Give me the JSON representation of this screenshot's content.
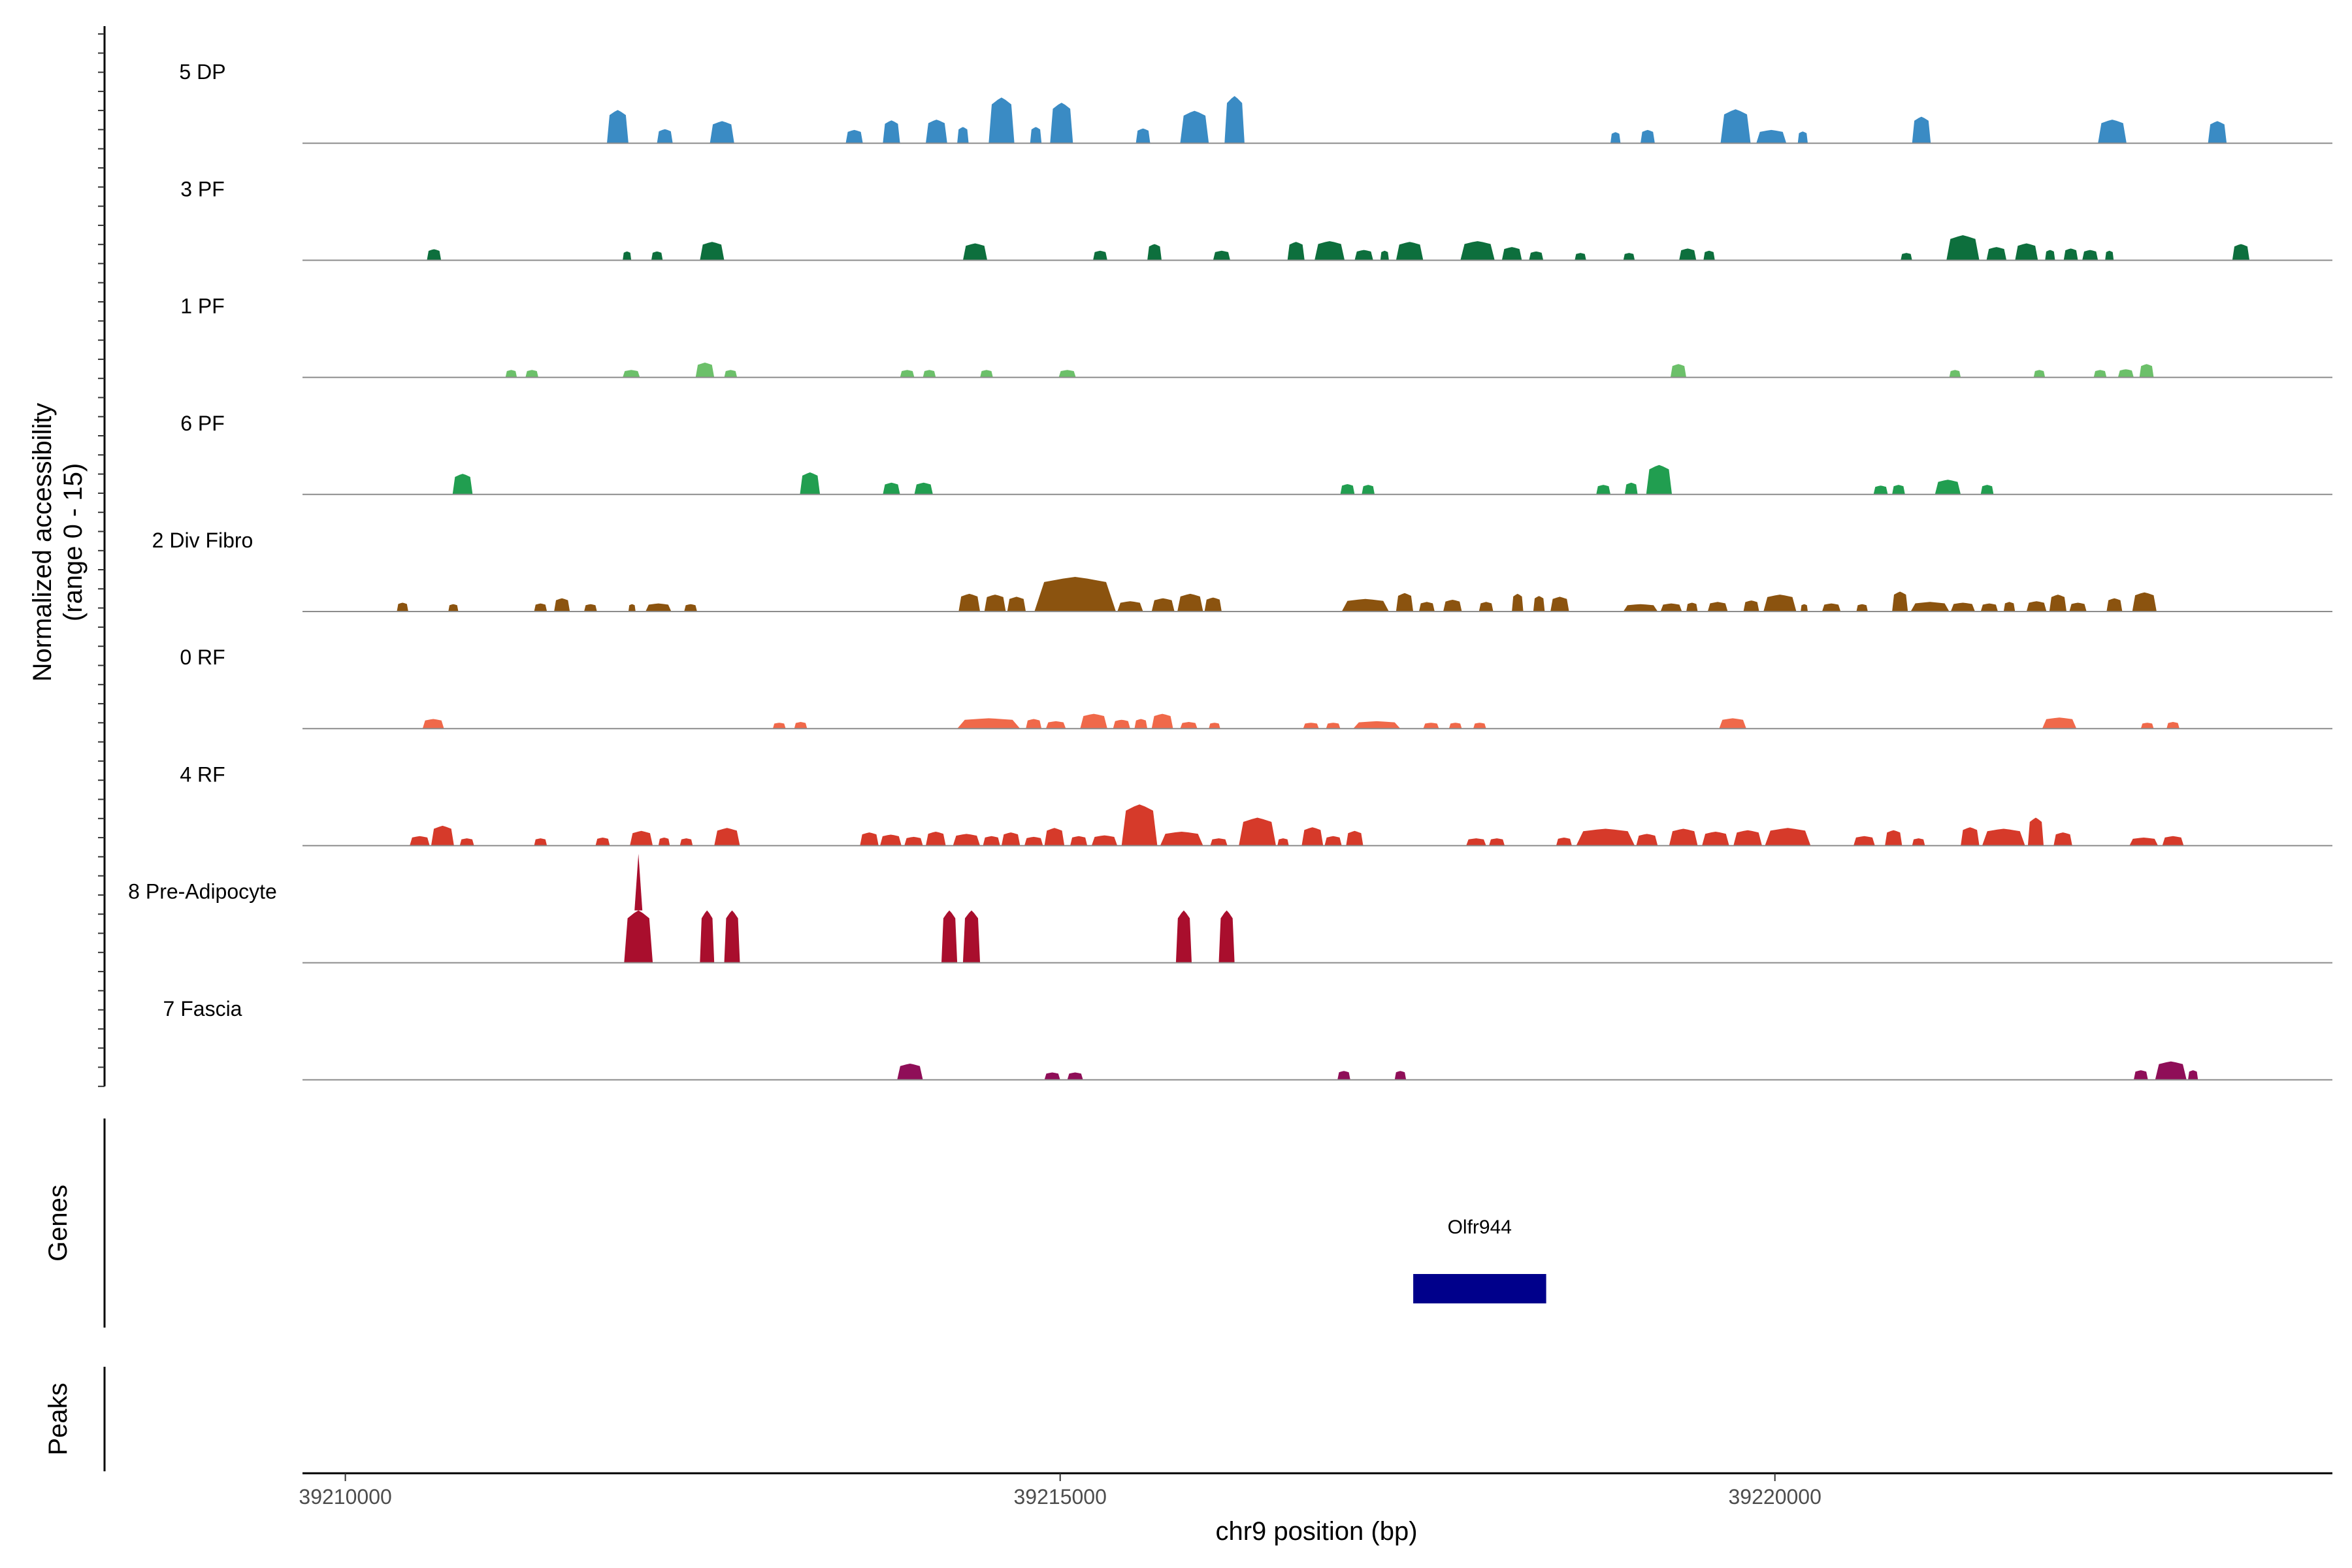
{
  "chart_data": {
    "type": "area",
    "ylabel": "Normalized accessibility",
    "ylabel_range": "(range 0 - 15)",
    "ylim": [
      0,
      15
    ],
    "xlabel": "chr9 position (bp)",
    "xlim": [
      39209700,
      39223900
    ],
    "xticks": [
      39210000,
      39215000,
      39220000
    ],
    "xtick_labels": [
      "39210000",
      "39215000",
      "39220000"
    ],
    "grid": false,
    "series": [
      {
        "name": "5 DP",
        "color": "#3A8BC4",
        "peaks": [
          [
            39211830,
            39211980,
            4.5
          ],
          [
            39212180,
            39212290,
            1.9
          ],
          [
            39212550,
            39212720,
            3.0
          ],
          [
            39213500,
            39213620,
            1.8
          ],
          [
            39213760,
            39213880,
            3.1
          ],
          [
            39214060,
            39214210,
            3.2
          ],
          [
            39214280,
            39214360,
            2.2
          ],
          [
            39214500,
            39214680,
            6.2
          ],
          [
            39214790,
            39214870,
            2.2
          ],
          [
            39214930,
            39215090,
            5.5
          ],
          [
            39215530,
            39215630,
            2.0
          ],
          [
            39215840,
            39216040,
            4.4
          ],
          [
            39216150,
            39216290,
            6.4
          ],
          [
            39218850,
            39218920,
            1.5
          ],
          [
            39219060,
            39219160,
            1.8
          ],
          [
            39219620,
            39219830,
            4.6
          ],
          [
            39219870,
            39220080,
            1.8
          ],
          [
            39220160,
            39220230,
            1.6
          ],
          [
            39220960,
            39221090,
            3.6
          ],
          [
            39222260,
            39222460,
            3.2
          ],
          [
            39223030,
            39223160,
            3.0
          ]
        ]
      },
      {
        "name": "3 PF",
        "color": "#0D6F3D",
        "peaks": [
          [
            39210570,
            39210670,
            1.5
          ],
          [
            39211940,
            39212000,
            1.2
          ],
          [
            39212140,
            39212220,
            1.2
          ],
          [
            39212480,
            39212650,
            2.5
          ],
          [
            39214320,
            39214490,
            2.3
          ],
          [
            39215230,
            39215330,
            1.3
          ],
          [
            39215610,
            39215710,
            2.2
          ],
          [
            39216070,
            39216190,
            1.3
          ],
          [
            39216590,
            39216710,
            2.5
          ],
          [
            39216780,
            39216990,
            2.6
          ],
          [
            39217060,
            39217190,
            1.4
          ],
          [
            39217240,
            39217300,
            1.3
          ],
          [
            39217350,
            39217540,
            2.5
          ],
          [
            39217800,
            39218040,
            2.6
          ],
          [
            39218090,
            39218230,
            1.8
          ],
          [
            39218280,
            39218380,
            1.2
          ],
          [
            39218600,
            39218680,
            1.0
          ],
          [
            39218940,
            39219020,
            1.0
          ],
          [
            39219330,
            39219450,
            1.6
          ],
          [
            39219500,
            39219580,
            1.3
          ],
          [
            39220880,
            39220960,
            1.0
          ],
          [
            39221200,
            39221430,
            3.4
          ],
          [
            39221480,
            39221620,
            1.8
          ],
          [
            39221680,
            39221840,
            2.3
          ],
          [
            39221890,
            39221960,
            1.4
          ],
          [
            39222020,
            39222120,
            1.6
          ],
          [
            39222150,
            39222260,
            1.4
          ],
          [
            39222310,
            39222370,
            1.3
          ],
          [
            39223200,
            39223320,
            2.2
          ]
        ]
      },
      {
        "name": "1 PF",
        "color": "#6CC06A",
        "peaks": [
          [
            39211120,
            39211200,
            1.0
          ],
          [
            39211260,
            39211350,
            1.0
          ],
          [
            39211940,
            39212060,
            1.0
          ],
          [
            39212450,
            39212580,
            2.0
          ],
          [
            39212650,
            39212740,
            1.0
          ],
          [
            39213880,
            39213980,
            1.0
          ],
          [
            39214040,
            39214130,
            1.0
          ],
          [
            39214440,
            39214530,
            1.0
          ],
          [
            39214990,
            39215110,
            1.0
          ],
          [
            39219270,
            39219380,
            1.8
          ],
          [
            39221220,
            39221300,
            1.0
          ],
          [
            39221810,
            39221890,
            1.0
          ],
          [
            39222230,
            39222320,
            1.0
          ],
          [
            39222400,
            39222510,
            1.1
          ],
          [
            39222550,
            39222650,
            1.8
          ]
        ]
      },
      {
        "name": "6 PF",
        "color": "#219E50",
        "peaks": [
          [
            39210750,
            39210890,
            2.8
          ],
          [
            39213180,
            39213320,
            3.0
          ],
          [
            39213760,
            39213880,
            1.6
          ],
          [
            39213980,
            39214110,
            1.6
          ],
          [
            39216960,
            39217060,
            1.4
          ],
          [
            39217110,
            39217200,
            1.3
          ],
          [
            39218750,
            39218850,
            1.3
          ],
          [
            39218950,
            39219040,
            1.6
          ],
          [
            39219100,
            39219280,
            4.0
          ],
          [
            39220690,
            39220790,
            1.2
          ],
          [
            39220820,
            39220910,
            1.3
          ],
          [
            39221120,
            39221300,
            2.0
          ],
          [
            39221440,
            39221530,
            1.3
          ]
        ]
      },
      {
        "name": "2 Div Fibro",
        "color": "#8B530F",
        "peaks": [
          [
            39210360,
            39210440,
            1.2
          ],
          [
            39210720,
            39210790,
            1.0
          ],
          [
            39211320,
            39211410,
            1.1
          ],
          [
            39211460,
            39211570,
            1.8
          ],
          [
            39211670,
            39211760,
            1.0
          ],
          [
            39211980,
            39212030,
            1.0
          ],
          [
            39212100,
            39212280,
            1.1
          ],
          [
            39212370,
            39212460,
            1.0
          ],
          [
            39214290,
            39214440,
            2.4
          ],
          [
            39214470,
            39214620,
            2.3
          ],
          [
            39214630,
            39214760,
            2.0
          ],
          [
            39214820,
            39215390,
            4.7
          ],
          [
            39215400,
            39215580,
            1.4
          ],
          [
            39215640,
            39215800,
            1.8
          ],
          [
            39215820,
            39216000,
            2.4
          ],
          [
            39216010,
            39216130,
            1.9
          ],
          [
            39216970,
            39217300,
            1.7
          ],
          [
            39217350,
            39217470,
            2.5
          ],
          [
            39217510,
            39217620,
            1.3
          ],
          [
            39217680,
            39217810,
            1.6
          ],
          [
            39217930,
            39218030,
            1.3
          ],
          [
            39218160,
            39218240,
            2.4
          ],
          [
            39218310,
            39218390,
            2.1
          ],
          [
            39218430,
            39218560,
            2.0
          ],
          [
            39218940,
            39219180,
            1.0
          ],
          [
            39219200,
            39219350,
            1.1
          ],
          [
            39219380,
            39219460,
            1.2
          ],
          [
            39219530,
            39219670,
            1.3
          ],
          [
            39219780,
            39219890,
            1.5
          ],
          [
            39219920,
            39220150,
            2.3
          ],
          [
            39220180,
            39220230,
            1.0
          ],
          [
            39220330,
            39220460,
            1.1
          ],
          [
            39220570,
            39220650,
            1.0
          ],
          [
            39220820,
            39220930,
            2.7
          ],
          [
            39220950,
            39221220,
            1.3
          ],
          [
            39221230,
            39221400,
            1.2
          ],
          [
            39221440,
            39221560,
            1.1
          ],
          [
            39221600,
            39221680,
            1.3
          ],
          [
            39221760,
            39221900,
            1.4
          ],
          [
            39221920,
            39222040,
            2.3
          ],
          [
            39222060,
            39222180,
            1.2
          ],
          [
            39222320,
            39222430,
            1.8
          ],
          [
            39222500,
            39222670,
            2.6
          ]
        ]
      },
      {
        "name": "0 RF",
        "color": "#F0694A",
        "peaks": [
          [
            39210540,
            39210690,
            1.3
          ],
          [
            39212990,
            39213080,
            0.8
          ],
          [
            39213140,
            39213230,
            0.9
          ],
          [
            39214280,
            39214720,
            1.4
          ],
          [
            39214760,
            39214870,
            1.3
          ],
          [
            39214900,
            39215040,
            1.0
          ],
          [
            39215140,
            39215330,
            2.0
          ],
          [
            39215370,
            39215490,
            1.2
          ],
          [
            39215520,
            39215610,
            1.3
          ],
          [
            39215640,
            39215790,
            2.0
          ],
          [
            39215840,
            39215960,
            0.9
          ],
          [
            39216040,
            39216120,
            0.8
          ],
          [
            39216700,
            39216810,
            0.8
          ],
          [
            39216860,
            39216960,
            0.8
          ],
          [
            39217050,
            39217380,
            1.0
          ],
          [
            39217540,
            39217650,
            0.8
          ],
          [
            39217720,
            39217810,
            0.8
          ],
          [
            39217890,
            39217980,
            0.8
          ],
          [
            39219610,
            39219800,
            1.4
          ],
          [
            39221870,
            39222110,
            1.5
          ],
          [
            39222560,
            39222650,
            0.8
          ],
          [
            39222740,
            39222830,
            0.9
          ]
        ]
      },
      {
        "name": "4 RF",
        "color": "#D63A2A",
        "peaks": [
          [
            39210450,
            39210590,
            1.3
          ],
          [
            39210600,
            39210760,
            2.7
          ],
          [
            39210800,
            39210900,
            1.0
          ],
          [
            39211320,
            39211410,
            1.0
          ],
          [
            39211750,
            39211850,
            1.1
          ],
          [
            39211990,
            39212150,
            2.0
          ],
          [
            39212190,
            39212270,
            1.1
          ],
          [
            39212340,
            39212430,
            1.0
          ],
          [
            39212580,
            39212760,
            2.4
          ],
          [
            39213600,
            39213730,
            1.8
          ],
          [
            39213740,
            39213890,
            1.5
          ],
          [
            39213910,
            39214040,
            1.2
          ],
          [
            39214060,
            39214200,
            1.9
          ],
          [
            39214250,
            39214440,
            1.6
          ],
          [
            39214460,
            39214580,
            1.3
          ],
          [
            39214590,
            39214720,
            1.8
          ],
          [
            39214750,
            39214880,
            1.2
          ],
          [
            39214890,
            39215030,
            2.4
          ],
          [
            39215070,
            39215190,
            1.3
          ],
          [
            39215220,
            39215400,
            1.4
          ],
          [
            39215430,
            39215680,
            5.6
          ],
          [
            39215700,
            39216000,
            1.9
          ],
          [
            39216050,
            39216170,
            1.0
          ],
          [
            39216250,
            39216510,
            3.8
          ],
          [
            39216520,
            39216600,
            1.0
          ],
          [
            39216690,
            39216840,
            2.5
          ],
          [
            39216850,
            39216970,
            1.3
          ],
          [
            39217000,
            39217120,
            2.0
          ],
          [
            39217840,
            39217980,
            1.0
          ],
          [
            39218000,
            39218110,
            1.0
          ],
          [
            39218470,
            39218580,
            1.1
          ],
          [
            39218610,
            39219020,
            2.3
          ],
          [
            39219030,
            39219180,
            1.6
          ],
          [
            39219260,
            39219460,
            2.3
          ],
          [
            39219490,
            39219680,
            1.9
          ],
          [
            39219710,
            39219910,
            2.1
          ],
          [
            39219930,
            39220250,
            2.4
          ],
          [
            39220550,
            39220700,
            1.3
          ],
          [
            39220770,
            39220890,
            2.1
          ],
          [
            39220960,
            39221050,
            1.0
          ],
          [
            39221300,
            39221430,
            2.5
          ],
          [
            39221450,
            39221750,
            2.3
          ],
          [
            39221770,
            39221880,
            3.8
          ],
          [
            39221950,
            39222080,
            1.8
          ],
          [
            39222480,
            39222680,
            1.1
          ],
          [
            39222710,
            39222860,
            1.3
          ]
        ]
      },
      {
        "name": "8 Pre-Adipocyte",
        "color": "#A90E2D",
        "peaks": [
          [
            39211950,
            39212150,
            7.1,
            14.8
          ],
          [
            39212480,
            39212580,
            7.1
          ],
          [
            39212650,
            39212760,
            7.1
          ],
          [
            39214170,
            39214280,
            7.1
          ],
          [
            39214320,
            39214440,
            7.1
          ],
          [
            39215810,
            39215920,
            7.1
          ],
          [
            39216110,
            39216220,
            7.1
          ]
        ]
      },
      {
        "name": "7 Fascia",
        "color": "#8F0E58",
        "peaks": [
          [
            39213860,
            39214040,
            2.2
          ],
          [
            39214890,
            39215000,
            1.0
          ],
          [
            39215050,
            39215160,
            1.0
          ],
          [
            39216940,
            39217030,
            1.2
          ],
          [
            39217340,
            39217420,
            1.2
          ],
          [
            39222510,
            39222610,
            1.3
          ],
          [
            39222660,
            39222880,
            2.5
          ],
          [
            39222890,
            39222960,
            1.3
          ]
        ]
      }
    ],
    "genes": [
      {
        "name": "Olfr944",
        "start": 39217470,
        "end": 39218400,
        "color": "#00008B"
      }
    ],
    "panels": [
      "Genes",
      "Peaks"
    ]
  }
}
